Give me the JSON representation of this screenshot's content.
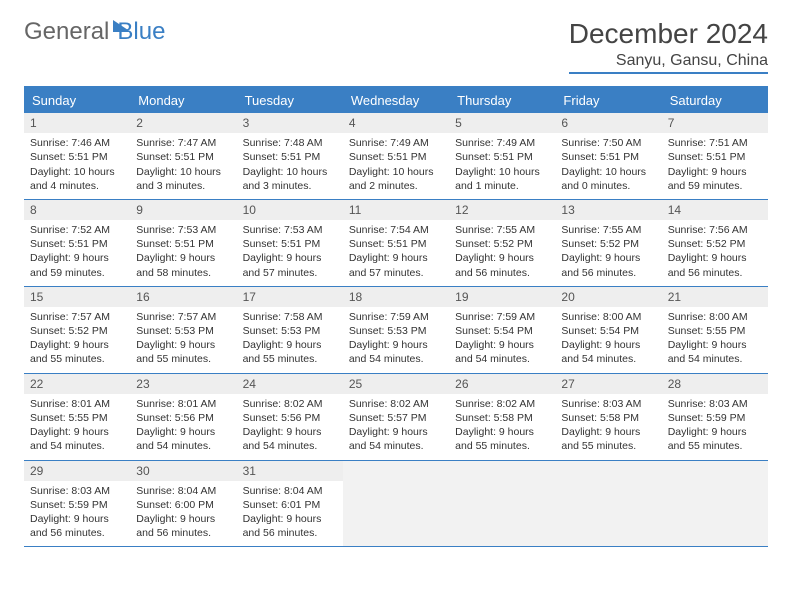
{
  "brand": {
    "part1": "General",
    "part2": "Blue"
  },
  "title": "December 2024",
  "location": "Sanyu, Gansu, China",
  "dayNames": [
    "Sunday",
    "Monday",
    "Tuesday",
    "Wednesday",
    "Thursday",
    "Friday",
    "Saturday"
  ],
  "colors": {
    "accent": "#3a7fc4",
    "headerText": "#ffffff",
    "cellHeader": "#eeeeee"
  },
  "weeks": [
    [
      {
        "n": "1",
        "sunrise": "Sunrise: 7:46 AM",
        "sunset": "Sunset: 5:51 PM",
        "day1": "Daylight: 10 hours",
        "day2": "and 4 minutes."
      },
      {
        "n": "2",
        "sunrise": "Sunrise: 7:47 AM",
        "sunset": "Sunset: 5:51 PM",
        "day1": "Daylight: 10 hours",
        "day2": "and 3 minutes."
      },
      {
        "n": "3",
        "sunrise": "Sunrise: 7:48 AM",
        "sunset": "Sunset: 5:51 PM",
        "day1": "Daylight: 10 hours",
        "day2": "and 3 minutes."
      },
      {
        "n": "4",
        "sunrise": "Sunrise: 7:49 AM",
        "sunset": "Sunset: 5:51 PM",
        "day1": "Daylight: 10 hours",
        "day2": "and 2 minutes."
      },
      {
        "n": "5",
        "sunrise": "Sunrise: 7:49 AM",
        "sunset": "Sunset: 5:51 PM",
        "day1": "Daylight: 10 hours",
        "day2": "and 1 minute."
      },
      {
        "n": "6",
        "sunrise": "Sunrise: 7:50 AM",
        "sunset": "Sunset: 5:51 PM",
        "day1": "Daylight: 10 hours",
        "day2": "and 0 minutes."
      },
      {
        "n": "7",
        "sunrise": "Sunrise: 7:51 AM",
        "sunset": "Sunset: 5:51 PM",
        "day1": "Daylight: 9 hours",
        "day2": "and 59 minutes."
      }
    ],
    [
      {
        "n": "8",
        "sunrise": "Sunrise: 7:52 AM",
        "sunset": "Sunset: 5:51 PM",
        "day1": "Daylight: 9 hours",
        "day2": "and 59 minutes."
      },
      {
        "n": "9",
        "sunrise": "Sunrise: 7:53 AM",
        "sunset": "Sunset: 5:51 PM",
        "day1": "Daylight: 9 hours",
        "day2": "and 58 minutes."
      },
      {
        "n": "10",
        "sunrise": "Sunrise: 7:53 AM",
        "sunset": "Sunset: 5:51 PM",
        "day1": "Daylight: 9 hours",
        "day2": "and 57 minutes."
      },
      {
        "n": "11",
        "sunrise": "Sunrise: 7:54 AM",
        "sunset": "Sunset: 5:51 PM",
        "day1": "Daylight: 9 hours",
        "day2": "and 57 minutes."
      },
      {
        "n": "12",
        "sunrise": "Sunrise: 7:55 AM",
        "sunset": "Sunset: 5:52 PM",
        "day1": "Daylight: 9 hours",
        "day2": "and 56 minutes."
      },
      {
        "n": "13",
        "sunrise": "Sunrise: 7:55 AM",
        "sunset": "Sunset: 5:52 PM",
        "day1": "Daylight: 9 hours",
        "day2": "and 56 minutes."
      },
      {
        "n": "14",
        "sunrise": "Sunrise: 7:56 AM",
        "sunset": "Sunset: 5:52 PM",
        "day1": "Daylight: 9 hours",
        "day2": "and 56 minutes."
      }
    ],
    [
      {
        "n": "15",
        "sunrise": "Sunrise: 7:57 AM",
        "sunset": "Sunset: 5:52 PM",
        "day1": "Daylight: 9 hours",
        "day2": "and 55 minutes."
      },
      {
        "n": "16",
        "sunrise": "Sunrise: 7:57 AM",
        "sunset": "Sunset: 5:53 PM",
        "day1": "Daylight: 9 hours",
        "day2": "and 55 minutes."
      },
      {
        "n": "17",
        "sunrise": "Sunrise: 7:58 AM",
        "sunset": "Sunset: 5:53 PM",
        "day1": "Daylight: 9 hours",
        "day2": "and 55 minutes."
      },
      {
        "n": "18",
        "sunrise": "Sunrise: 7:59 AM",
        "sunset": "Sunset: 5:53 PM",
        "day1": "Daylight: 9 hours",
        "day2": "and 54 minutes."
      },
      {
        "n": "19",
        "sunrise": "Sunrise: 7:59 AM",
        "sunset": "Sunset: 5:54 PM",
        "day1": "Daylight: 9 hours",
        "day2": "and 54 minutes."
      },
      {
        "n": "20",
        "sunrise": "Sunrise: 8:00 AM",
        "sunset": "Sunset: 5:54 PM",
        "day1": "Daylight: 9 hours",
        "day2": "and 54 minutes."
      },
      {
        "n": "21",
        "sunrise": "Sunrise: 8:00 AM",
        "sunset": "Sunset: 5:55 PM",
        "day1": "Daylight: 9 hours",
        "day2": "and 54 minutes."
      }
    ],
    [
      {
        "n": "22",
        "sunrise": "Sunrise: 8:01 AM",
        "sunset": "Sunset: 5:55 PM",
        "day1": "Daylight: 9 hours",
        "day2": "and 54 minutes."
      },
      {
        "n": "23",
        "sunrise": "Sunrise: 8:01 AM",
        "sunset": "Sunset: 5:56 PM",
        "day1": "Daylight: 9 hours",
        "day2": "and 54 minutes."
      },
      {
        "n": "24",
        "sunrise": "Sunrise: 8:02 AM",
        "sunset": "Sunset: 5:56 PM",
        "day1": "Daylight: 9 hours",
        "day2": "and 54 minutes."
      },
      {
        "n": "25",
        "sunrise": "Sunrise: 8:02 AM",
        "sunset": "Sunset: 5:57 PM",
        "day1": "Daylight: 9 hours",
        "day2": "and 54 minutes."
      },
      {
        "n": "26",
        "sunrise": "Sunrise: 8:02 AM",
        "sunset": "Sunset: 5:58 PM",
        "day1": "Daylight: 9 hours",
        "day2": "and 55 minutes."
      },
      {
        "n": "27",
        "sunrise": "Sunrise: 8:03 AM",
        "sunset": "Sunset: 5:58 PM",
        "day1": "Daylight: 9 hours",
        "day2": "and 55 minutes."
      },
      {
        "n": "28",
        "sunrise": "Sunrise: 8:03 AM",
        "sunset": "Sunset: 5:59 PM",
        "day1": "Daylight: 9 hours",
        "day2": "and 55 minutes."
      }
    ],
    [
      {
        "n": "29",
        "sunrise": "Sunrise: 8:03 AM",
        "sunset": "Sunset: 5:59 PM",
        "day1": "Daylight: 9 hours",
        "day2": "and 56 minutes."
      },
      {
        "n": "30",
        "sunrise": "Sunrise: 8:04 AM",
        "sunset": "Sunset: 6:00 PM",
        "day1": "Daylight: 9 hours",
        "day2": "and 56 minutes."
      },
      {
        "n": "31",
        "sunrise": "Sunrise: 8:04 AM",
        "sunset": "Sunset: 6:01 PM",
        "day1": "Daylight: 9 hours",
        "day2": "and 56 minutes."
      },
      null,
      null,
      null,
      null
    ]
  ]
}
